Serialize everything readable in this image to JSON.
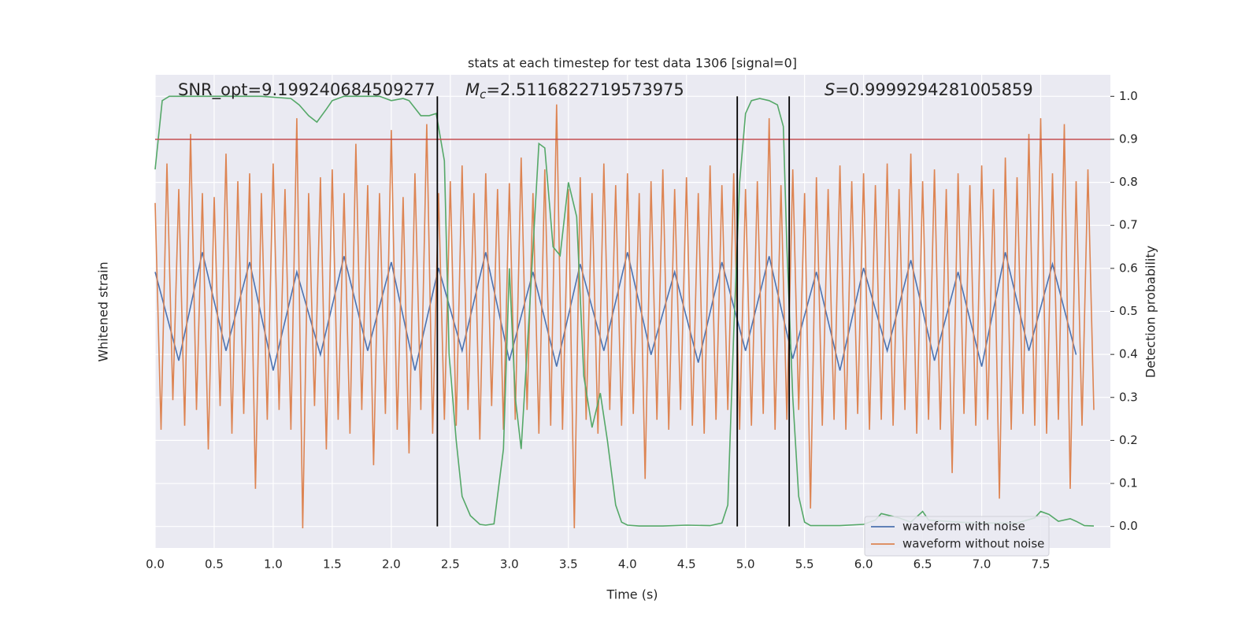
{
  "chart_data": {
    "type": "line",
    "title": "stats at each timestep for test data 1306 [signal=0]",
    "x_label": "Time (s)",
    "y_label": "Whitened strain",
    "y2_label": "Detection probability",
    "xlim": [
      0,
      8.09
    ],
    "xticks": [
      {
        "value": 0,
        "label": "0.0"
      },
      0.5,
      {
        "value": 1,
        "label": "1.0"
      },
      1.5,
      {
        "value": 2,
        "label": "2.0"
      },
      2.5,
      {
        "value": 3,
        "label": "3.0"
      },
      3.5,
      {
        "value": 4,
        "label": "4.0"
      },
      4.5,
      {
        "value": 5,
        "label": "5.0"
      },
      5.5,
      {
        "value": 6,
        "label": "6.0"
      },
      6.5,
      {
        "value": 7,
        "label": "7.0"
      },
      7.5
    ],
    "ylim": [
      -1.2,
      1.2
    ],
    "y2lim": [
      -0.05,
      1.05
    ],
    "y2ticks": [
      {
        "value": 0,
        "label": "0.0"
      },
      0.1,
      0.2,
      0.3,
      0.4,
      0.5,
      0.6,
      0.7,
      0.8,
      0.9,
      {
        "value": 1,
        "label": "1.0"
      }
    ],
    "grid": true,
    "legend": "lower right",
    "threshold": {
      "value": 0.9,
      "color": "#c44e52",
      "axis": "y2"
    },
    "vlines": {
      "values": [
        2.39,
        4.93,
        5.37
      ],
      "color": "#000000"
    },
    "annotations": [
      [
        {
          "text": "SNR_opt=9.199240684509277",
          "style": "normal"
        }
      ],
      [
        {
          "text": "M",
          "style": "italic"
        },
        {
          "text": "c",
          "style": "sub"
        },
        {
          "text": "=2.5116822719573975",
          "style": "normal"
        }
      ],
      [
        {
          "text": "S",
          "style": "italic"
        },
        {
          "text": "=0.9999294281005859",
          "style": "normal"
        }
      ]
    ],
    "series": [
      {
        "name": "waveform with noise",
        "color": "#4c72b0",
        "axis": "y",
        "x": [
          0,
          0.2,
          0.4,
          0.6,
          0.8,
          1,
          1.2,
          1.4,
          1.6,
          1.8,
          2,
          2.2,
          2.4,
          2.6,
          2.8,
          3,
          3.2,
          3.4,
          3.6,
          3.8,
          4,
          4.2,
          4.4,
          4.6,
          4.8,
          5,
          5.2,
          5.4,
          5.6,
          5.8,
          6,
          6.2,
          6.4,
          6.6,
          6.8,
          7,
          7.2,
          7.4,
          7.6,
          7.8
        ],
        "values": [
          0.2,
          -0.25,
          0.3,
          -0.2,
          0.25,
          -0.3,
          0.2,
          -0.22,
          0.28,
          -0.2,
          0.25,
          -0.3,
          0.22,
          -0.2,
          0.3,
          -0.25,
          0.2,
          -0.28,
          0.24,
          -0.2,
          0.3,
          -0.22,
          0.2,
          -0.26,
          0.25,
          -0.2,
          0.28,
          -0.24,
          0.2,
          -0.3,
          0.22,
          -0.2,
          0.26,
          -0.25,
          0.2,
          -0.28,
          0.3,
          -0.2,
          0.24,
          -0.22
        ]
      },
      {
        "name": "waveform without noise",
        "color": "#dd8452",
        "axis": "y",
        "x": [
          0,
          0.05,
          0.1,
          0.15,
          0.2,
          0.25,
          0.3,
          0.35,
          0.4,
          0.45,
          0.5,
          0.55,
          0.6,
          0.65,
          0.7,
          0.75,
          0.8,
          0.85,
          0.9,
          0.95,
          1,
          1.05,
          1.1,
          1.15,
          1.2,
          1.25,
          1.3,
          1.35,
          1.4,
          1.45,
          1.5,
          1.55,
          1.6,
          1.65,
          1.7,
          1.75,
          1.8,
          1.85,
          1.9,
          1.95,
          2,
          2.05,
          2.1,
          2.15,
          2.2,
          2.25,
          2.3,
          2.35,
          2.4,
          2.45,
          2.5,
          2.55,
          2.6,
          2.65,
          2.7,
          2.75,
          2.8,
          2.85,
          2.9,
          2.95,
          3,
          3.05,
          3.1,
          3.15,
          3.2,
          3.25,
          3.3,
          3.35,
          3.4,
          3.45,
          3.5,
          3.55,
          3.6,
          3.65,
          3.7,
          3.75,
          3.8,
          3.85,
          3.9,
          3.95,
          4,
          4.05,
          4.1,
          4.15,
          4.2,
          4.25,
          4.3,
          4.35,
          4.4,
          4.45,
          4.5,
          4.55,
          4.6,
          4.65,
          4.7,
          4.75,
          4.8,
          4.85,
          4.9,
          4.95,
          5,
          5.05,
          5.1,
          5.15,
          5.2,
          5.25,
          5.3,
          5.35,
          5.4,
          5.45,
          5.5,
          5.55,
          5.6,
          5.65,
          5.7,
          5.75,
          5.8,
          5.85,
          5.9,
          5.95,
          6,
          6.05,
          6.1,
          6.15,
          6.2,
          6.25,
          6.3,
          6.35,
          6.4,
          6.45,
          6.5,
          6.55,
          6.6,
          6.65,
          6.7,
          6.75,
          6.8,
          6.85,
          6.9,
          6.95,
          7,
          7.05,
          7.1,
          7.15,
          7.2,
          7.25,
          7.3,
          7.35,
          7.4,
          7.45,
          7.5,
          7.55,
          7.6,
          7.65,
          7.7,
          7.75,
          7.8,
          7.85,
          7.9,
          7.95
        ],
        "values": [
          0.55,
          -0.6,
          0.75,
          -0.45,
          0.62,
          -0.58,
          0.9,
          -0.5,
          0.6,
          -0.7,
          0.58,
          -0.48,
          0.8,
          -0.62,
          0.66,
          -0.52,
          0.7,
          -0.9,
          0.6,
          -0.55,
          0.75,
          -0.5,
          0.62,
          -0.6,
          0.98,
          -1.1,
          0.6,
          -0.48,
          0.68,
          -0.7,
          0.72,
          -0.55,
          0.6,
          -0.62,
          0.85,
          -0.5,
          0.64,
          -0.78,
          0.6,
          -0.52,
          0.92,
          -0.6,
          0.58,
          -0.72,
          0.7,
          -0.5,
          0.95,
          -0.62,
          0.6,
          -0.55,
          0.66,
          -0.58,
          0.74,
          -0.5,
          0.6,
          -0.65,
          0.7,
          -0.48,
          0.62,
          -0.6,
          0.65,
          -0.55,
          0.78,
          -0.5,
          0.6,
          -0.62,
          0.72,
          -0.58,
          1.05,
          -0.6,
          0.62,
          -1.1,
          0.68,
          -0.55,
          0.6,
          -0.62,
          0.75,
          -0.5,
          0.64,
          -0.58,
          0.7,
          -0.52,
          0.6,
          -0.85,
          0.66,
          -0.55,
          0.72,
          -0.6,
          0.62,
          -0.5,
          0.68,
          -0.58,
          0.6,
          -0.62,
          0.74,
          -0.55,
          0.64,
          -0.5,
          0.7,
          -0.6,
          0.62,
          -0.58,
          0.66,
          -0.52,
          0.98,
          -0.6,
          0.64,
          -0.55,
          0.72,
          -0.5,
          0.6,
          -1.0,
          0.68,
          -0.58,
          0.62,
          -0.55,
          0.74,
          -0.6,
          0.66,
          -0.52,
          0.7,
          -0.6,
          0.64,
          -0.55,
          0.75,
          -0.58,
          0.62,
          -0.5,
          0.8,
          -0.62,
          0.66,
          -0.55,
          0.72,
          -0.6,
          0.62,
          -0.82,
          0.7,
          -0.52,
          0.64,
          -0.58,
          0.74,
          -0.55,
          0.62,
          -0.95,
          0.78,
          -0.6,
          0.68,
          -0.52,
          0.9,
          -0.58,
          0.98,
          -0.62,
          0.7,
          -0.55,
          0.95,
          -0.9,
          0.66,
          -0.58,
          0.72,
          -0.5
        ]
      },
      {
        "color": "#55a868",
        "axis": "y2",
        "x": [
          0,
          0.06,
          0.12,
          0.3,
          0.6,
          0.9,
          1.15,
          1.22,
          1.3,
          1.37,
          1.45,
          1.5,
          1.6,
          1.9,
          2,
          2.1,
          2.15,
          2.25,
          2.32,
          2.38,
          2.45,
          2.49,
          2.55,
          2.6,
          2.67,
          2.75,
          2.8,
          2.87,
          2.95,
          3,
          3.05,
          3.1,
          3.17,
          3.25,
          3.3,
          3.37,
          3.43,
          3.5,
          3.57,
          3.63,
          3.7,
          3.77,
          3.83,
          3.9,
          3.95,
          4,
          4.1,
          4.3,
          4.5,
          4.7,
          4.8,
          4.85,
          4.9,
          4.95,
          5,
          5.05,
          5.12,
          5.2,
          5.27,
          5.32,
          5.35,
          5.4,
          5.45,
          5.5,
          5.55,
          5.8,
          6,
          6.1,
          6.15,
          6.3,
          6.4,
          6.5,
          6.55,
          6.8,
          7,
          7.3,
          7.45,
          7.5,
          7.57,
          7.65,
          7.75,
          7.8,
          7.87,
          7.95
        ],
        "values": [
          0.83,
          0.99,
          1,
          1,
          1,
          1,
          0.995,
          0.98,
          0.955,
          0.94,
          0.97,
          0.99,
          1,
          1,
          0.99,
          0.995,
          0.99,
          0.955,
          0.955,
          0.96,
          0.85,
          0.4,
          0.2,
          0.07,
          0.025,
          0.005,
          0.003,
          0.006,
          0.18,
          0.6,
          0.3,
          0.18,
          0.5,
          0.89,
          0.88,
          0.65,
          0.63,
          0.8,
          0.72,
          0.35,
          0.23,
          0.31,
          0.2,
          0.05,
          0.01,
          0.003,
          0.001,
          0.001,
          0.003,
          0.002,
          0.008,
          0.05,
          0.45,
          0.8,
          0.96,
          0.99,
          0.995,
          0.99,
          0.98,
          0.93,
          0.65,
          0.3,
          0.07,
          0.01,
          0.002,
          0.002,
          0.005,
          0.015,
          0.03,
          0.02,
          0.01,
          0.035,
          0.015,
          0.01,
          0.008,
          0.008,
          0.02,
          0.035,
          0.028,
          0.012,
          0.018,
          0.012,
          0.002,
          0.001
        ]
      }
    ]
  }
}
